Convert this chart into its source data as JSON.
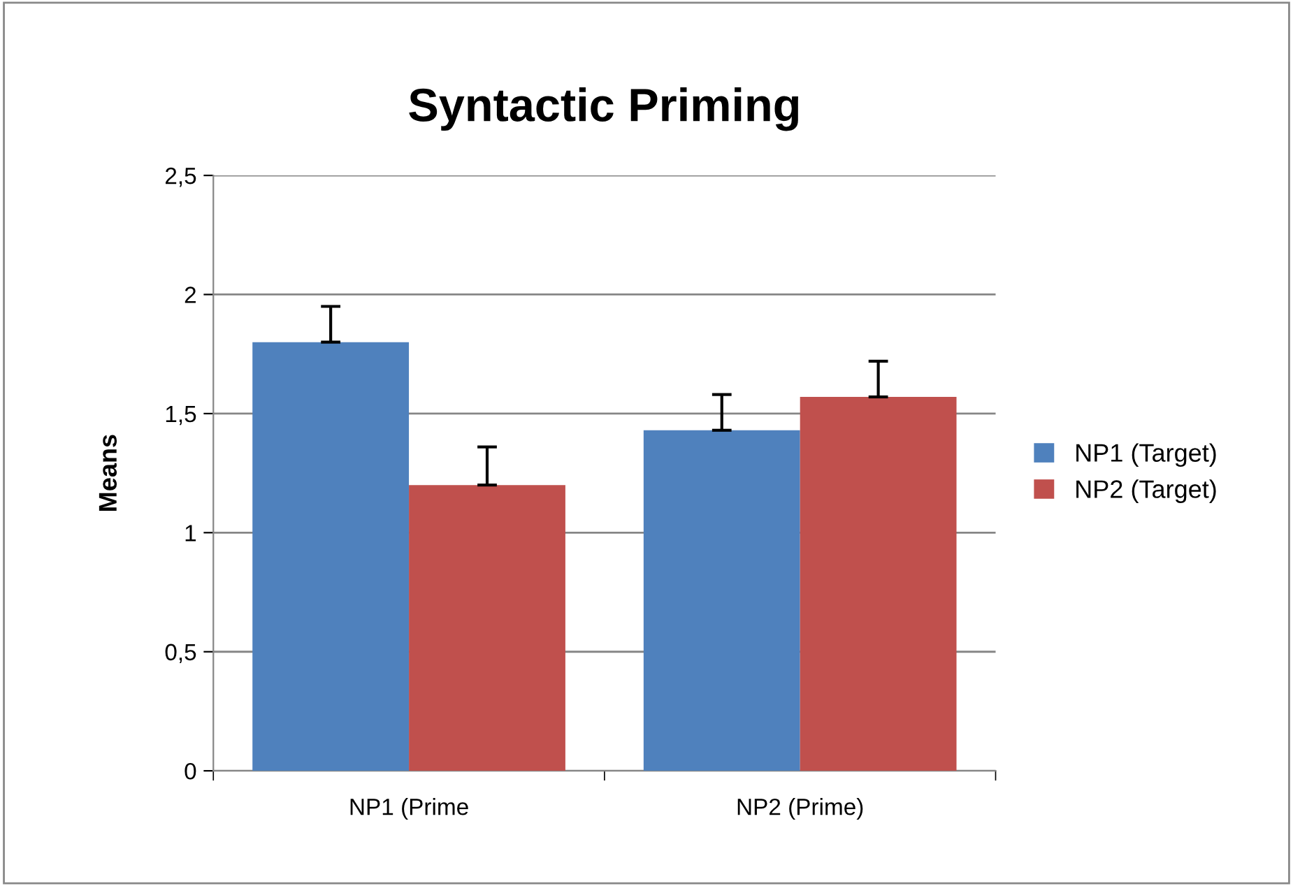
{
  "chart_data": {
    "type": "bar",
    "title": "Syntactic Priming",
    "ylabel": "Means",
    "categories": [
      "NP1 (Prime",
      "NP2 (Prime)"
    ],
    "series": [
      {
        "name": "NP1 (Target)",
        "color": "#4f81bd",
        "values": [
          1.8,
          1.43
        ],
        "errors": [
          [
            1.8,
            1.95
          ],
          [
            1.43,
            1.58
          ]
        ]
      },
      {
        "name": "NP2 (Target)",
        "color": "#c0504d",
        "values": [
          1.2,
          1.57
        ],
        "errors": [
          [
            1.2,
            1.36
          ],
          [
            1.57,
            1.72
          ]
        ]
      }
    ],
    "ylim": [
      0,
      2.5
    ],
    "yticks": [
      0,
      {
        "value": 0.5,
        "label": "0,5"
      },
      1,
      {
        "value": 1.5,
        "label": "1,5"
      },
      2,
      {
        "value": 2.5,
        "label": "2,5"
      }
    ],
    "grid": "y",
    "legend": "right"
  }
}
